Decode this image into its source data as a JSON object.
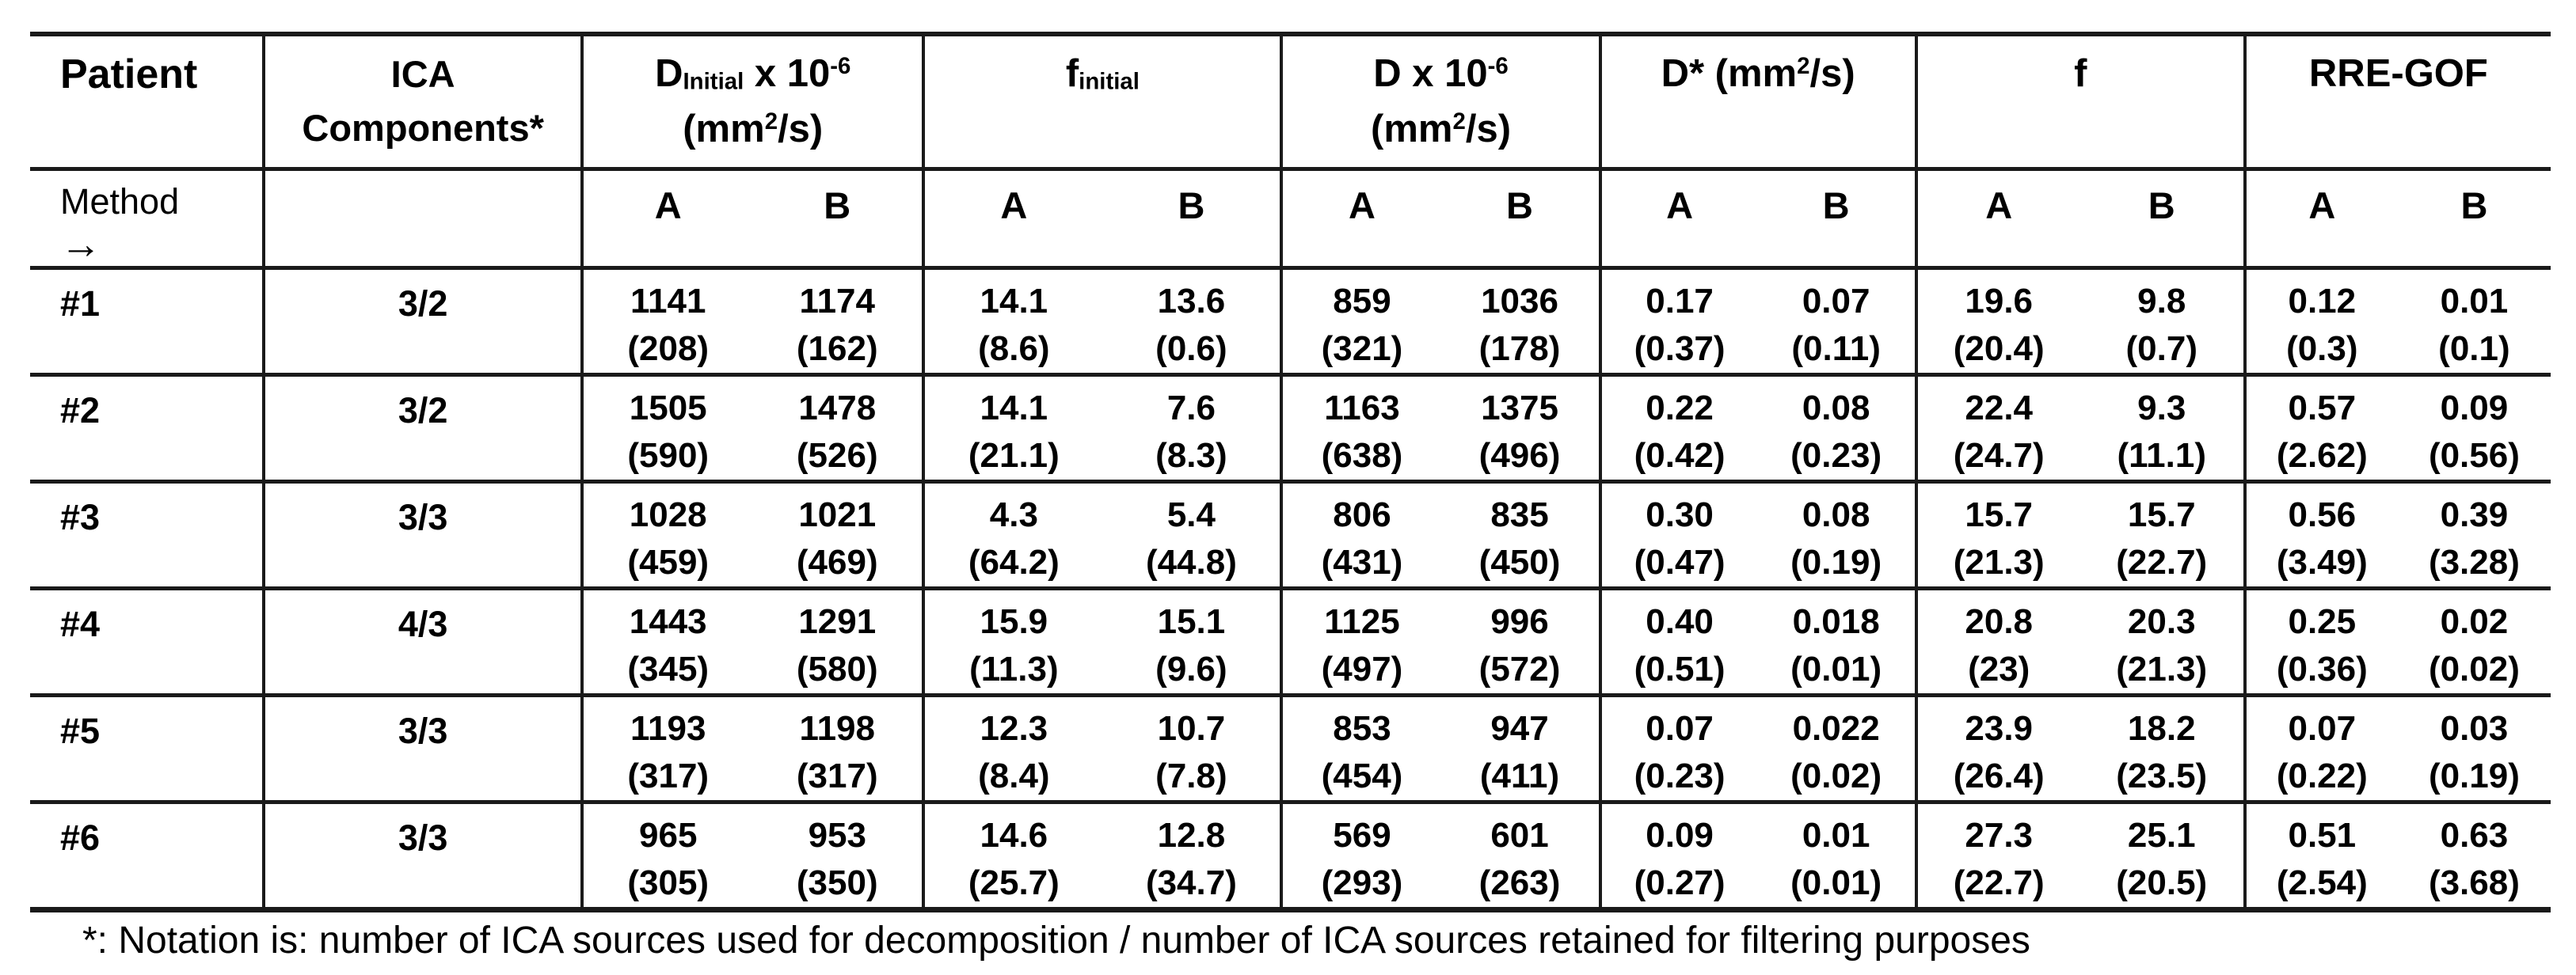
{
  "table": {
    "header": {
      "patient": "Patient",
      "ica_line1": "ICA",
      "ica_line2": "Components*",
      "method_label": "Method",
      "method_arrow": "→",
      "subcolumn_labels": [
        "A",
        "B"
      ],
      "groups": [
        {
          "name": "d-initial",
          "line1": [
            {
              "text": "D"
            },
            {
              "text": "Initial",
              "style": "sub"
            },
            {
              "text": " x 10"
            },
            {
              "text": "-6",
              "style": "sup"
            }
          ],
          "line2": [
            {
              "text": "(mm"
            },
            {
              "text": "2",
              "style": "sup"
            },
            {
              "text": "/s)"
            }
          ]
        },
        {
          "name": "f-initial",
          "line1": [
            {
              "text": "f"
            },
            {
              "text": "initial",
              "style": "sub"
            }
          ],
          "line2": []
        },
        {
          "name": "d",
          "line1": [
            {
              "text": "D x 10"
            },
            {
              "text": "-6",
              "style": "sup"
            }
          ],
          "line2": [
            {
              "text": "(mm"
            },
            {
              "text": "2",
              "style": "sup"
            },
            {
              "text": "/s)"
            }
          ]
        },
        {
          "name": "d-star",
          "line1": [
            {
              "text": "D* (mm"
            },
            {
              "text": "2",
              "style": "sup"
            },
            {
              "text": "/s)"
            }
          ],
          "line2": []
        },
        {
          "name": "f",
          "line1": [
            {
              "text": "f"
            }
          ],
          "line2": []
        },
        {
          "name": "rre-gof",
          "line1": [
            {
              "text": "RRE-GOF"
            }
          ],
          "line2": []
        }
      ]
    },
    "rows": [
      {
        "patient": "#1",
        "ica_components": "3/2",
        "cells": [
          {
            "value": "1141",
            "sd": "(208)"
          },
          {
            "value": "1174",
            "sd": "(162)"
          },
          {
            "value": "14.1",
            "sd": "(8.6)"
          },
          {
            "value": "13.6",
            "sd": "(0.6)"
          },
          {
            "value": "859",
            "sd": "(321)"
          },
          {
            "value": "1036",
            "sd": "(178)"
          },
          {
            "value": "0.17",
            "sd": "(0.37)"
          },
          {
            "value": "0.07",
            "sd": "(0.11)"
          },
          {
            "value": "19.6",
            "sd": "(20.4)"
          },
          {
            "value": "9.8",
            "sd": "(0.7)"
          },
          {
            "value": "0.12",
            "sd": "(0.3)"
          },
          {
            "value": "0.01",
            "sd": "(0.1)"
          }
        ]
      },
      {
        "patient": "#2",
        "ica_components": "3/2",
        "cells": [
          {
            "value": "1505",
            "sd": "(590)"
          },
          {
            "value": "1478",
            "sd": "(526)"
          },
          {
            "value": "14.1",
            "sd": "(21.1)"
          },
          {
            "value": "7.6",
            "sd": "(8.3)"
          },
          {
            "value": "1163",
            "sd": "(638)"
          },
          {
            "value": "1375",
            "sd": "(496)"
          },
          {
            "value": "0.22",
            "sd": "(0.42)"
          },
          {
            "value": "0.08",
            "sd": "(0.23)"
          },
          {
            "value": "22.4",
            "sd": "(24.7)"
          },
          {
            "value": "9.3",
            "sd": "(11.1)"
          },
          {
            "value": "0.57",
            "sd": "(2.62)"
          },
          {
            "value": "0.09",
            "sd": "(0.56)"
          }
        ]
      },
      {
        "patient": "#3",
        "ica_components": "3/3",
        "cells": [
          {
            "value": "1028",
            "sd": "(459)"
          },
          {
            "value": "1021",
            "sd": "(469)"
          },
          {
            "value": "4.3",
            "sd": "(64.2)"
          },
          {
            "value": "5.4",
            "sd": "(44.8)"
          },
          {
            "value": "806",
            "sd": "(431)"
          },
          {
            "value": "835",
            "sd": "(450)"
          },
          {
            "value": "0.30",
            "sd": "(0.47)"
          },
          {
            "value": "0.08",
            "sd": "(0.19)"
          },
          {
            "value": "15.7",
            "sd": "(21.3)"
          },
          {
            "value": "15.7",
            "sd": "(22.7)"
          },
          {
            "value": "0.56",
            "sd": "(3.49)"
          },
          {
            "value": "0.39",
            "sd": "(3.28)"
          }
        ]
      },
      {
        "patient": "#4",
        "ica_components": "4/3",
        "cells": [
          {
            "value": "1443",
            "sd": "(345)"
          },
          {
            "value": "1291",
            "sd": "(580)"
          },
          {
            "value": "15.9",
            "sd": "(11.3)"
          },
          {
            "value": "15.1",
            "sd": "(9.6)"
          },
          {
            "value": "1125",
            "sd": "(497)"
          },
          {
            "value": "996",
            "sd": "(572)"
          },
          {
            "value": "0.40",
            "sd": "(0.51)"
          },
          {
            "value": "0.018",
            "sd": "(0.01)"
          },
          {
            "value": "20.8",
            "sd": "(23)"
          },
          {
            "value": "20.3",
            "sd": "(21.3)"
          },
          {
            "value": "0.25",
            "sd": "(0.36)"
          },
          {
            "value": "0.02",
            "sd": "(0.02)"
          }
        ]
      },
      {
        "patient": "#5",
        "ica_components": "3/3",
        "cells": [
          {
            "value": "1193",
            "sd": "(317)"
          },
          {
            "value": "1198",
            "sd": "(317)"
          },
          {
            "value": "12.3",
            "sd": "(8.4)"
          },
          {
            "value": "10.7",
            "sd": "(7.8)"
          },
          {
            "value": "853",
            "sd": "(454)"
          },
          {
            "value": "947",
            "sd": "(411)"
          },
          {
            "value": "0.07",
            "sd": "(0.23)"
          },
          {
            "value": "0.022",
            "sd": "(0.02)"
          },
          {
            "value": "23.9",
            "sd": "(26.4)"
          },
          {
            "value": "18.2",
            "sd": "(23.5)"
          },
          {
            "value": "0.07",
            "sd": "(0.22)"
          },
          {
            "value": "0.03",
            "sd": "(0.19)"
          }
        ]
      },
      {
        "patient": "#6",
        "ica_components": "3/3",
        "cells": [
          {
            "value": "965",
            "sd": "(305)"
          },
          {
            "value": "953",
            "sd": "(350)"
          },
          {
            "value": "14.6",
            "sd": "(25.7)"
          },
          {
            "value": "12.8",
            "sd": "(34.7)"
          },
          {
            "value": "569",
            "sd": "(293)"
          },
          {
            "value": "601",
            "sd": "(263)"
          },
          {
            "value": "0.09",
            "sd": "(0.27)"
          },
          {
            "value": "0.01",
            "sd": "(0.01)"
          },
          {
            "value": "27.3",
            "sd": "(22.7)"
          },
          {
            "value": "25.1",
            "sd": "(20.5)"
          },
          {
            "value": "0.51",
            "sd": "(2.54)"
          },
          {
            "value": "0.63",
            "sd": "(3.68)"
          }
        ]
      }
    ]
  },
  "footnote": "*: Notation is: number of ICA sources used for decomposition / number of ICA sources retained for filtering purposes",
  "colors": {
    "text": "#000000",
    "background": "#ffffff",
    "border": "#1a1a1a"
  }
}
